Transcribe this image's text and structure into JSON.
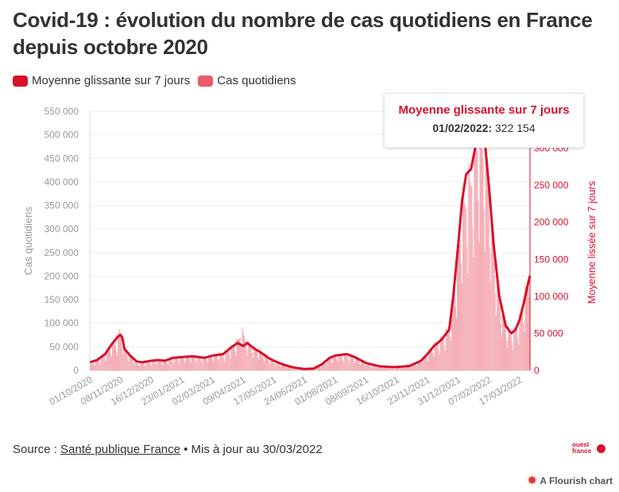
{
  "header": {
    "title": "Covid-19 : évolution du nombre de cas quotidiens en France depuis octobre 2020"
  },
  "legend": {
    "items": [
      {
        "label": "Moyenne glissante sur 7 jours",
        "color": "#d8102a"
      },
      {
        "label": "Cas quotidiens",
        "color": "#eb5a6b"
      }
    ]
  },
  "tooltip": {
    "title": "Moyenne glissante sur 7 jours",
    "date": "01/02/2022:",
    "value": "322 154"
  },
  "footer": {
    "source_prefix": "Source : ",
    "source_link": "Santé publique France",
    "source_suffix": " • Mis à jour au 30/03/2022",
    "logo_line1": "ouest",
    "logo_line2": "france",
    "flourish": "A Flourish chart"
  },
  "chart_data": {
    "type": "bar",
    "xlabel": "",
    "ylabel": "Cas quotidiens",
    "y2label": "Moyenne lissée sur 7 jours",
    "ylim": [
      0,
      550000
    ],
    "y2lim": [
      0,
      350000
    ],
    "yticks": [
      "0",
      "50 000",
      "100 000",
      "150 000",
      "200 000",
      "250 000",
      "300 000",
      "350 000",
      "400 000",
      "450 000",
      "500 000",
      "550 000"
    ],
    "y2ticks": [
      "0",
      "50 000",
      "100 000",
      "150 000",
      "200 000",
      "250 000",
      "300 000"
    ],
    "y2tick_values": [
      0,
      50000,
      100000,
      150000,
      200000,
      250000,
      300000
    ],
    "xticks": [
      "01/10/2020",
      "08/11/2020",
      "16/12/2020",
      "23/01/2021",
      "02/03/2021",
      "09/04/2021",
      "17/05/2021",
      "24/06/2021",
      "01/08/2021",
      "08/09/2021",
      "16/10/2021",
      "23/11/2021",
      "31/12/2021",
      "07/02/2022",
      "17/03/2022"
    ],
    "x_start": "2020-10-01",
    "x_end": "2022-03-30",
    "grid": true,
    "legend_position": "top-left",
    "series": [
      {
        "name": "Moyenne glissante sur 7 jours",
        "axis": "right",
        "points": [
          [
            "2020-10-01",
            11000
          ],
          [
            "2020-10-10",
            14000
          ],
          [
            "2020-10-20",
            22000
          ],
          [
            "2020-10-28",
            35000
          ],
          [
            "2020-11-05",
            46000
          ],
          [
            "2020-11-08",
            48000
          ],
          [
            "2020-11-10",
            45000
          ],
          [
            "2020-11-13",
            29000
          ],
          [
            "2020-11-20",
            20000
          ],
          [
            "2020-11-28",
            12000
          ],
          [
            "2020-12-05",
            11000
          ],
          [
            "2020-12-16",
            13000
          ],
          [
            "2020-12-25",
            14000
          ],
          [
            "2021-01-02",
            13000
          ],
          [
            "2021-01-12",
            17000
          ],
          [
            "2021-01-23",
            18000
          ],
          [
            "2021-02-05",
            19000
          ],
          [
            "2021-02-20",
            17000
          ],
          [
            "2021-03-02",
            20000
          ],
          [
            "2021-03-15",
            22000
          ],
          [
            "2021-03-25",
            31000
          ],
          [
            "2021-04-02",
            37000
          ],
          [
            "2021-04-09",
            33000
          ],
          [
            "2021-04-14",
            37000
          ],
          [
            "2021-04-22",
            30000
          ],
          [
            "2021-05-01",
            24000
          ],
          [
            "2021-05-10",
            17000
          ],
          [
            "2021-05-17",
            13000
          ],
          [
            "2021-05-28",
            8000
          ],
          [
            "2021-06-10",
            4000
          ],
          [
            "2021-06-24",
            1800
          ],
          [
            "2021-07-05",
            2500
          ],
          [
            "2021-07-15",
            8000
          ],
          [
            "2021-07-25",
            17000
          ],
          [
            "2021-08-01",
            20000
          ],
          [
            "2021-08-15",
            22000
          ],
          [
            "2021-08-25",
            18000
          ],
          [
            "2021-09-08",
            10000
          ],
          [
            "2021-09-25",
            5500
          ],
          [
            "2021-10-10",
            4500
          ],
          [
            "2021-10-16",
            4500
          ],
          [
            "2021-11-01",
            6000
          ],
          [
            "2021-11-15",
            13000
          ],
          [
            "2021-11-23",
            22000
          ],
          [
            "2021-12-01",
            33000
          ],
          [
            "2021-12-10",
            41000
          ],
          [
            "2021-12-20",
            55000
          ],
          [
            "2021-12-25",
            100000
          ],
          [
            "2021-12-31",
            168000
          ],
          [
            "2022-01-05",
            230000
          ],
          [
            "2022-01-10",
            265000
          ],
          [
            "2022-01-16",
            272000
          ],
          [
            "2022-01-21",
            300000
          ],
          [
            "2022-01-26",
            340000
          ],
          [
            "2022-02-01",
            322154
          ],
          [
            "2022-02-07",
            250000
          ],
          [
            "2022-02-13",
            170000
          ],
          [
            "2022-02-20",
            100000
          ],
          [
            "2022-02-28",
            60000
          ],
          [
            "2022-03-07",
            50000
          ],
          [
            "2022-03-12",
            55000
          ],
          [
            "2022-03-17",
            68000
          ],
          [
            "2022-03-22",
            90000
          ],
          [
            "2022-03-27",
            115000
          ],
          [
            "2022-03-30",
            128000
          ]
        ]
      },
      {
        "name": "Cas quotidiens",
        "axis": "left",
        "points": [
          [
            "2020-10-01",
            12000
          ],
          [
            "2020-10-10",
            20000
          ],
          [
            "2020-10-20",
            35000
          ],
          [
            "2020-10-28",
            50000
          ],
          [
            "2020-11-05",
            60000
          ],
          [
            "2020-11-07",
            86000
          ],
          [
            "2020-11-10",
            70000
          ],
          [
            "2020-11-13",
            45000
          ],
          [
            "2020-11-20",
            30000
          ],
          [
            "2020-11-28",
            15000
          ],
          [
            "2020-12-05",
            14000
          ],
          [
            "2020-12-16",
            18000
          ],
          [
            "2020-12-25",
            20000
          ],
          [
            "2021-01-02",
            18000
          ],
          [
            "2021-01-12",
            26000
          ],
          [
            "2021-01-23",
            28000
          ],
          [
            "2021-02-05",
            29000
          ],
          [
            "2021-02-20",
            27000
          ],
          [
            "2021-03-02",
            31000
          ],
          [
            "2021-03-15",
            35000
          ],
          [
            "2021-03-25",
            48000
          ],
          [
            "2021-04-02",
            60000
          ],
          [
            "2021-04-07",
            83000
          ],
          [
            "2021-04-14",
            58000
          ],
          [
            "2021-04-22",
            48000
          ],
          [
            "2021-05-01",
            38000
          ],
          [
            "2021-05-10",
            27000
          ],
          [
            "2021-05-17",
            20000
          ],
          [
            "2021-05-28",
            12000
          ],
          [
            "2021-06-10",
            5000
          ],
          [
            "2021-06-24",
            2500
          ],
          [
            "2021-07-05",
            3500
          ],
          [
            "2021-07-15",
            12000
          ],
          [
            "2021-07-25",
            26000
          ],
          [
            "2021-08-01",
            30000
          ],
          [
            "2021-08-15",
            33000
          ],
          [
            "2021-08-25",
            28000
          ],
          [
            "2021-09-08",
            15000
          ],
          [
            "2021-09-25",
            8000
          ],
          [
            "2021-10-10",
            6500
          ],
          [
            "2021-10-16",
            6500
          ],
          [
            "2021-11-01",
            9000
          ],
          [
            "2021-11-15",
            20000
          ],
          [
            "2021-11-23",
            35000
          ],
          [
            "2021-12-01",
            52000
          ],
          [
            "2021-12-10",
            65000
          ],
          [
            "2021-12-20",
            88000
          ],
          [
            "2021-12-25",
            150000
          ],
          [
            "2021-12-31",
            230000
          ],
          [
            "2022-01-05",
            335000
          ],
          [
            "2022-01-10",
            360000
          ],
          [
            "2022-01-16",
            400000
          ],
          [
            "2022-01-21",
            460000
          ],
          [
            "2022-01-25",
            500000
          ],
          [
            "2022-02-01",
            470000
          ],
          [
            "2022-02-07",
            380000
          ],
          [
            "2022-02-13",
            260000
          ],
          [
            "2022-02-20",
            150000
          ],
          [
            "2022-02-28",
            90000
          ],
          [
            "2022-03-07",
            75000
          ],
          [
            "2022-03-12",
            85000
          ],
          [
            "2022-03-17",
            105000
          ],
          [
            "2022-03-22",
            140000
          ],
          [
            "2022-03-27",
            180000
          ],
          [
            "2022-03-29",
            215000
          ],
          [
            "2022-03-30",
            175000
          ]
        ]
      }
    ]
  }
}
